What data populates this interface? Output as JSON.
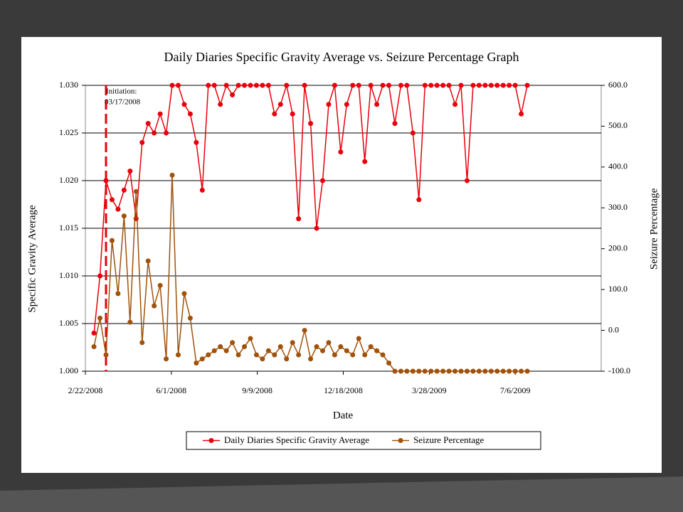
{
  "chart_data": {
    "type": "line",
    "title": "Daily Diaries Specific Gravity Average vs. Seizure Percentage Graph",
    "x_label": "Date",
    "y_label": "Specific Gravity Average",
    "y2_label": "Seizure Percentage",
    "annotation": [
      "Initiation:",
      "03/17/2008"
    ],
    "x": [
      "3/3/2008",
      "3/10/2008",
      "3/17/2008",
      "3/24/2008",
      "3/31/2008",
      "4/7/2008",
      "4/14/2008",
      "4/21/2008",
      "4/28/2008",
      "5/5/2008",
      "5/12/2008",
      "5/19/2008",
      "5/26/2008",
      "6/2/2008",
      "6/9/2008",
      "6/16/2008",
      "6/23/2008",
      "6/30/2008",
      "7/7/2008",
      "7/14/2008",
      "7/21/2008",
      "7/28/2008",
      "8/4/2008",
      "8/11/2008",
      "8/18/2008",
      "8/25/2008",
      "9/1/2008",
      "9/8/2008",
      "9/15/2008",
      "9/22/2008",
      "9/29/2008",
      "10/6/2008",
      "10/13/2008",
      "10/20/2008",
      "10/27/2008",
      "11/3/2008",
      "11/10/2008",
      "11/17/2008",
      "11/24/2008",
      "12/1/2008",
      "12/8/2008",
      "12/15/2008",
      "12/22/2008",
      "12/29/2008",
      "1/5/2009",
      "1/12/2009",
      "1/19/2009",
      "1/26/2009",
      "2/2/2009",
      "2/9/2009",
      "2/16/2009",
      "2/23/2009",
      "3/2/2009",
      "3/9/2009",
      "3/16/2009",
      "3/23/2009",
      "3/30/2009",
      "4/6/2009",
      "4/13/2009",
      "4/20/2009",
      "4/27/2009",
      "5/4/2009",
      "5/11/2009",
      "5/18/2009",
      "5/25/2009",
      "6/1/2009",
      "6/8/2009",
      "6/15/2009",
      "6/22/2009",
      "6/29/2009",
      "7/6/2009",
      "7/13/2009",
      "7/20/2009"
    ],
    "series": [
      {
        "name": "Daily Diaries Specific Gravity Average",
        "color": "#e8000b",
        "axis": "y",
        "values": [
          1.004,
          1.01,
          1.02,
          1.018,
          1.017,
          1.019,
          1.021,
          1.016,
          1.024,
          1.026,
          1.025,
          1.027,
          1.025,
          1.03,
          1.03,
          1.028,
          1.027,
          1.024,
          1.019,
          1.03,
          1.03,
          1.028,
          1.03,
          1.029,
          1.03,
          1.03,
          1.03,
          1.03,
          1.03,
          1.03,
          1.027,
          1.028,
          1.03,
          1.027,
          1.016,
          1.03,
          1.026,
          1.015,
          1.02,
          1.028,
          1.03,
          1.023,
          1.028,
          1.03,
          1.03,
          1.022,
          1.03,
          1.028,
          1.03,
          1.03,
          1.026,
          1.03,
          1.03,
          1.025,
          1.018,
          1.03,
          1.03,
          1.03,
          1.03,
          1.03,
          1.028,
          1.03,
          1.02,
          1.03,
          1.03,
          1.03,
          1.03,
          1.03,
          1.03,
          1.03,
          1.03,
          1.027,
          1.03
        ]
      },
      {
        "name": "Seizure Percentage",
        "color": "#a0520a",
        "axis": "y2",
        "values": [
          -40,
          30,
          -60,
          220,
          90,
          280,
          20,
          340,
          -30,
          170,
          60,
          110,
          -70,
          380,
          -60,
          90,
          30,
          -80,
          -70,
          -60,
          -50,
          -40,
          -50,
          -30,
          -60,
          -40,
          -20,
          -60,
          -70,
          -50,
          -60,
          -40,
          -70,
          -30,
          -60,
          0,
          -70,
          -40,
          -50,
          -30,
          -60,
          -40,
          -50,
          -60,
          -20,
          -60,
          -40,
          -50,
          -60,
          -80,
          -100,
          -100,
          -100,
          -100,
          -100,
          -100,
          -100,
          -100,
          -100,
          -100,
          -100,
          -100,
          -100,
          -100,
          -100,
          -100,
          -100,
          -100,
          -100,
          -100,
          -100,
          -100,
          -100
        ]
      }
    ],
    "xlim": [
      "2/22/2008",
      "10/14/2009"
    ],
    "xticks": [
      "2/22/2008",
      "6/1/2008",
      "9/9/2008",
      "12/18/2008",
      "3/28/2009",
      "7/6/2009"
    ],
    "ylim": [
      1.0,
      1.03
    ],
    "yticks": [
      {
        "value": 1.0,
        "label": "1.000"
      },
      {
        "value": 1.005,
        "label": "1.005"
      },
      {
        "value": 1.01,
        "label": "1.010"
      },
      {
        "value": 1.015,
        "label": "1.015"
      },
      {
        "value": 1.02,
        "label": "1.020"
      },
      {
        "value": 1.025,
        "label": "1.025"
      },
      {
        "value": 1.03,
        "label": "1.030"
      }
    ],
    "y2lim": [
      -100,
      600
    ],
    "y2ticks": [
      {
        "value": -100,
        "label": "-100.0"
      },
      {
        "value": 0,
        "label": "0.0"
      },
      {
        "value": 100,
        "label": "100.0"
      },
      {
        "value": 200,
        "label": "200.0"
      },
      {
        "value": 300,
        "label": "300.0"
      },
      {
        "value": 400,
        "label": "400.0"
      },
      {
        "value": 500,
        "label": "500.0"
      },
      {
        "value": 600,
        "label": "600.0"
      }
    ],
    "grid": true,
    "legend": "bottom"
  }
}
